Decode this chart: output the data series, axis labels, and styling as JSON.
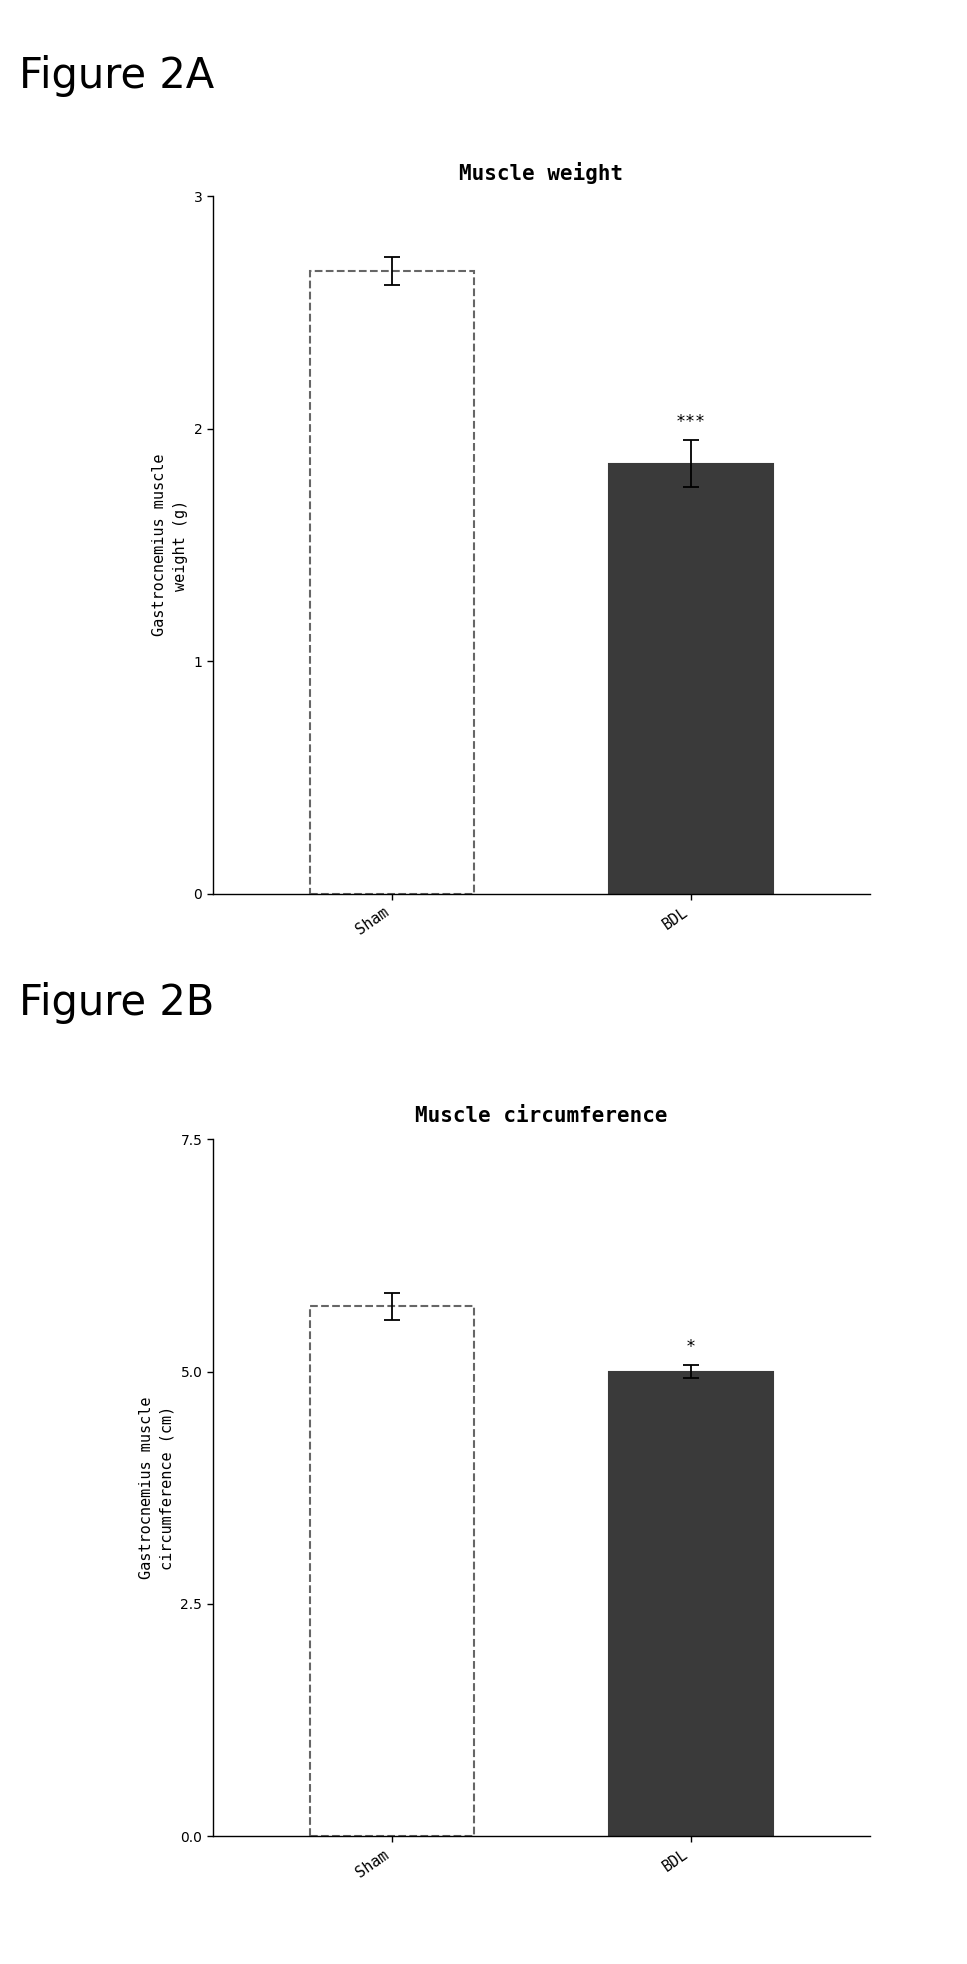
{
  "fig2a": {
    "title": "Muscle weight",
    "ylabel": "Gastrocnemius muscle\nweight (g)",
    "categories": [
      "Sham",
      "BDL"
    ],
    "values": [
      2.68,
      1.85
    ],
    "errors": [
      0.06,
      0.1
    ],
    "bar_colors": [
      "white",
      "#3a3a3a"
    ],
    "bar_edgecolors": [
      "#666666",
      "#3a3a3a"
    ],
    "bar_linestyles": [
      "dashed",
      "solid"
    ],
    "bar_hatches": [
      "",
      "......"
    ],
    "ylim": [
      0,
      3.0
    ],
    "yticks": [
      0,
      1,
      2,
      3
    ],
    "significance": [
      "",
      "***"
    ],
    "sig_fontsize": 12,
    "title_fontsize": 15,
    "label_fontsize": 11,
    "tick_fontsize": 10
  },
  "fig2b": {
    "title": "Muscle circumference",
    "ylabel": "Gastrocnemius muscle\ncircumference (cm)",
    "categories": [
      "Sham",
      "BDL"
    ],
    "values": [
      5.7,
      5.0
    ],
    "errors": [
      0.15,
      0.07
    ],
    "bar_colors": [
      "white",
      "#3a3a3a"
    ],
    "bar_edgecolors": [
      "#666666",
      "#3a3a3a"
    ],
    "bar_linestyles": [
      "dashed",
      "solid"
    ],
    "bar_hatches": [
      "",
      "......"
    ],
    "ylim": [
      0.0,
      7.5
    ],
    "yticks": [
      0.0,
      2.5,
      5.0,
      7.5
    ],
    "significance": [
      "",
      "*"
    ],
    "sig_fontsize": 12,
    "title_fontsize": 15,
    "label_fontsize": 11,
    "tick_fontsize": 10
  },
  "figure_label_fontsize": 30,
  "background_color": "#ffffff",
  "figsize": [
    9.67,
    19.64
  ],
  "dpi": 100
}
